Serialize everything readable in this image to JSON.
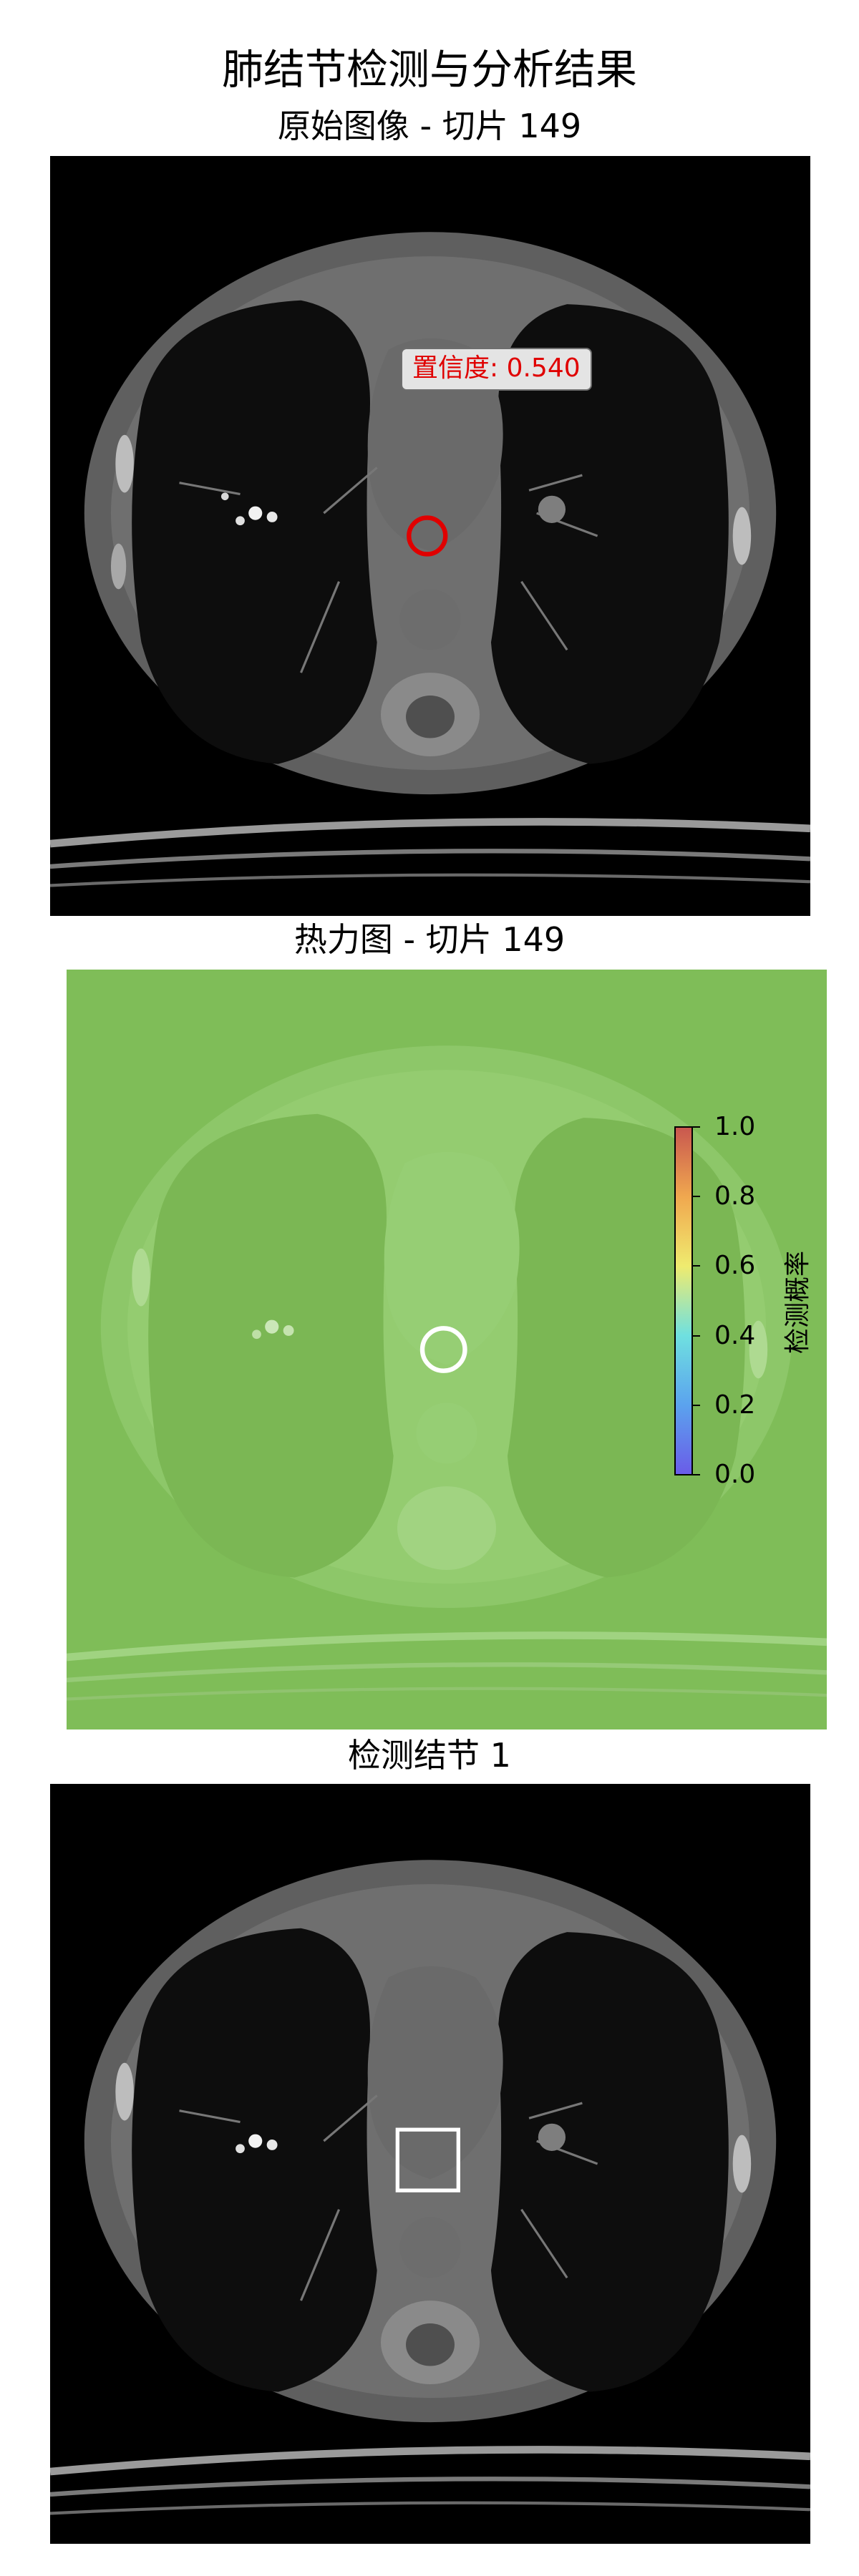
{
  "figure": {
    "title": "肺结节检测与分析结果",
    "panel_1_title": "原始图像 - 切片 149",
    "panel_2_title": "热力图 - 切片 149",
    "panel_3_title": "检测结节 1"
  },
  "panel_1": {
    "annotation": "置信度: 0.540",
    "marker_color": "#e00000"
  },
  "panel_2": {
    "overlay_color": "#7fbd58",
    "marker_color": "#ffffff",
    "colorbar": {
      "label": "检测概率",
      "colormap": "jet",
      "range": [
        0.0,
        1.0
      ],
      "ticks": [
        "0.0",
        "0.2",
        "0.4",
        "0.6",
        "0.8",
        "1.0"
      ]
    }
  },
  "panel_3": {
    "marker_color": "#ffffff"
  }
}
